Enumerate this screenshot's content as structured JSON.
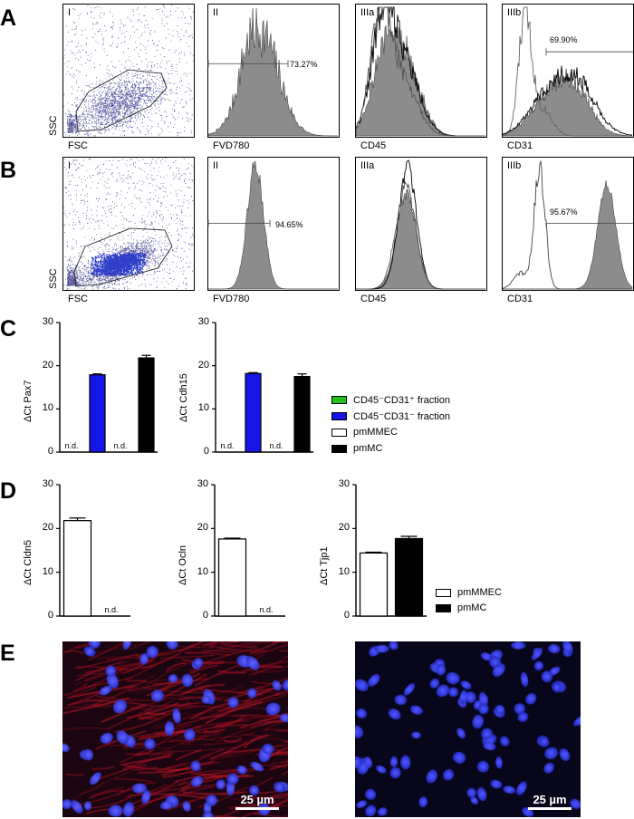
{
  "panels": {
    "A": "A",
    "B": "B",
    "C": "C",
    "D": "D",
    "E": "E"
  },
  "flow": {
    "rows": [
      {
        "subpanels": [
          {
            "tag": "I",
            "xlabel": "FSC",
            "ylabel": "SSC"
          },
          {
            "tag": "II",
            "xlabel": "FVD780",
            "gate_label": "73.27%"
          },
          {
            "tag": "IIIa",
            "xlabel": "CD45"
          },
          {
            "tag": "IIIb",
            "xlabel": "CD31",
            "gate_label": "69.90%"
          }
        ]
      },
      {
        "subpanels": [
          {
            "tag": "I",
            "xlabel": "FSC",
            "ylabel": "SSC"
          },
          {
            "tag": "II",
            "xlabel": "FVD780",
            "gate_label": "94.65%"
          },
          {
            "tag": "IIIa",
            "xlabel": "CD45"
          },
          {
            "tag": "IIIb",
            "xlabel": "CD31",
            "gate_label": "95.67%"
          }
        ]
      }
    ]
  },
  "colors": {
    "green": "#1fc01f",
    "blue": "#1515e6",
    "white": "#ffffff",
    "black": "#000000",
    "fill_gray": "#8c8c8c",
    "dot_blue": "#2a2a8a",
    "micro_bg": "#0d0515"
  },
  "legend_c": [
    {
      "label": "CD45⁻CD31⁺ fraction",
      "color": "#1fc01f"
    },
    {
      "label": "CD45⁻CD31⁻ fraction",
      "color": "#1515e6"
    },
    {
      "label": "pmMMEC",
      "color": "#ffffff"
    },
    {
      "label": "pmMC",
      "color": "#000000"
    }
  ],
  "legend_d": [
    {
      "label": "pmMMEC",
      "color": "#ffffff"
    },
    {
      "label": "pmMC",
      "color": "#000000"
    }
  ],
  "nd_text": "n.d.",
  "chart_data": [
    {
      "type": "bar",
      "panel": "C",
      "ylabel": "ΔCt Pax7",
      "ylim": [
        0,
        30
      ],
      "yticks": [
        0,
        10,
        20,
        30
      ],
      "categories": [
        "CD45⁻CD31⁺ fraction",
        "CD45⁻CD31⁻ fraction",
        "pmMMEC",
        "pmMC"
      ],
      "values": [
        null,
        17.9,
        null,
        21.8
      ],
      "errors": [
        0,
        0.2,
        0,
        0.6
      ],
      "not_detected": [
        true,
        false,
        true,
        false
      ]
    },
    {
      "type": "bar",
      "panel": "C",
      "ylabel": "ΔCt Cdh15",
      "ylim": [
        0,
        30
      ],
      "yticks": [
        0,
        10,
        20,
        30
      ],
      "categories": [
        "CD45⁻CD31⁺ fraction",
        "CD45⁻CD31⁻ fraction",
        "pmMMEC",
        "pmMC"
      ],
      "values": [
        null,
        18.2,
        null,
        17.5
      ],
      "errors": [
        0,
        0.2,
        0,
        0.6
      ],
      "not_detected": [
        true,
        false,
        true,
        false
      ]
    },
    {
      "type": "bar",
      "panel": "D",
      "ylabel": "ΔCt Cldn5",
      "ylim": [
        0,
        30
      ],
      "yticks": [
        0,
        10,
        20,
        30
      ],
      "categories": [
        "pmMMEC",
        "pmMC"
      ],
      "values": [
        21.8,
        null
      ],
      "errors": [
        0.6,
        0
      ],
      "not_detected": [
        false,
        true
      ]
    },
    {
      "type": "bar",
      "panel": "D",
      "ylabel": "ΔCt Ocln",
      "ylim": [
        0,
        30
      ],
      "yticks": [
        0,
        10,
        20,
        30
      ],
      "categories": [
        "pmMMEC",
        "pmMC"
      ],
      "values": [
        17.6,
        null
      ],
      "errors": [
        0.2,
        0
      ],
      "not_detected": [
        false,
        true
      ]
    },
    {
      "type": "bar",
      "panel": "D",
      "ylabel": "ΔCt Tjp1",
      "ylim": [
        0,
        30
      ],
      "yticks": [
        0,
        10,
        20,
        30
      ],
      "categories": [
        "pmMMEC",
        "pmMC"
      ],
      "values": [
        14.4,
        17.7
      ],
      "errors": [
        0.2,
        0.5
      ],
      "not_detected": [
        false,
        false
      ]
    }
  ],
  "micrographs": [
    {
      "scale_label": "25 µm",
      "stain": "red-blue"
    },
    {
      "scale_label": "25 µm",
      "stain": "blue"
    }
  ]
}
